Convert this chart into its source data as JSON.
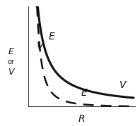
{
  "xlabel": "R",
  "ylabel_lines": [
    "E",
    "or",
    "V"
  ],
  "V_label_upper": "V",
  "E_label_upper": "E",
  "V_label_lower": "V",
  "E_label_lower": "E",
  "curve_color": "#111111",
  "bg_color": "#ffffff",
  "axis_color": "#111111",
  "label_color": "#111111",
  "xlim": [
    0.0,
    1.0
  ],
  "ylim": [
    0.0,
    1.0
  ],
  "r_start": 0.08,
  "r_end": 0.98,
  "V_scale": 0.09,
  "E_scale": 0.007,
  "figsize": [
    1.98,
    1.79
  ],
  "dpi": 100
}
